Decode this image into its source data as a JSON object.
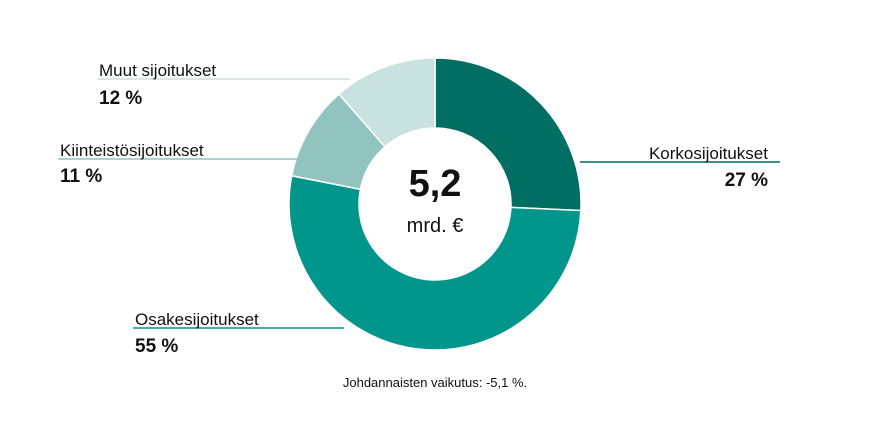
{
  "chart_data": {
    "type": "pie",
    "variant": "donut",
    "categories": [
      "Korkosijoitukset",
      "Osakesijoitukset",
      "Kiinteistösijoitukset",
      "Muut sijoitukset"
    ],
    "values": [
      27,
      55,
      11,
      12
    ],
    "value_labels": [
      "27 %",
      "55 %",
      "11 %",
      "12 %"
    ],
    "colors": [
      "#006e62",
      "#00968c",
      "#92c4bf",
      "#c8e2df"
    ],
    "center_value": "5,2",
    "center_unit": "mrd. €",
    "footnote": "Johdannaisten vaikutus: -5,1 %."
  }
}
